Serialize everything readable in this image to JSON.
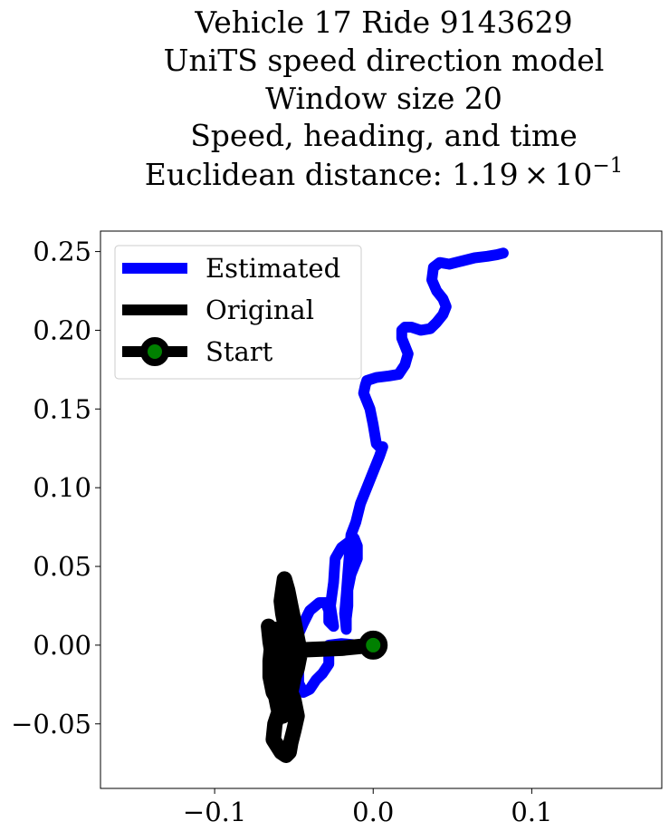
{
  "chart_data": {
    "type": "line",
    "title_lines": [
      "Vehicle 17 Ride 9143629",
      "UniTS speed direction model",
      "Window size 20",
      "Speed, heading, and time"
    ],
    "title_metric_prefix": "Euclidean distance: ",
    "title_metric_mantissa": "1.19",
    "title_metric_times": "×",
    "title_metric_base": "10",
    "title_metric_exponent": "−1",
    "xlim": [
      -0.172,
      0.182
    ],
    "ylim": [
      -0.091,
      0.263
    ],
    "x_ticks": [
      {
        "value": -0.1,
        "label": "−0.1"
      },
      {
        "value": 0.0,
        "label": "0.0"
      },
      {
        "value": 0.1,
        "label": "0.1"
      }
    ],
    "y_ticks": [
      {
        "value": 0.25,
        "label": "0.25"
      },
      {
        "value": 0.2,
        "label": "0.20"
      },
      {
        "value": 0.15,
        "label": "0.15"
      },
      {
        "value": 0.1,
        "label": "0.10"
      },
      {
        "value": 0.05,
        "label": "0.05"
      },
      {
        "value": 0.0,
        "label": "0.00"
      },
      {
        "value": -0.05,
        "label": "−0.05"
      }
    ],
    "grid": false,
    "legend_position": "top-left",
    "series": [
      {
        "name": "Estimated",
        "color": "#0000ff",
        "x": [
          0.0,
          -0.01,
          -0.02,
          -0.028,
          -0.028,
          -0.032,
          -0.036,
          -0.04,
          -0.044,
          -0.047,
          -0.047,
          -0.05,
          -0.048,
          -0.044,
          -0.04,
          -0.034,
          -0.03,
          -0.028,
          -0.028,
          -0.025,
          -0.027,
          -0.025,
          -0.024,
          -0.02,
          -0.016,
          -0.012,
          -0.01,
          -0.01,
          -0.014,
          -0.016,
          -0.016,
          -0.017,
          -0.017,
          -0.018,
          -0.017,
          -0.016,
          -0.015,
          -0.014,
          -0.011,
          -0.008,
          -0.004,
          0.0,
          0.004,
          0.006,
          0.004,
          0.002,
          0.0,
          -0.002,
          -0.006,
          -0.005,
          -0.004,
          0.002,
          0.01,
          0.016,
          0.02,
          0.022,
          0.02,
          0.018,
          0.018,
          0.02,
          0.024,
          0.03,
          0.036,
          0.04,
          0.044,
          0.046,
          0.044,
          0.04,
          0.037,
          0.038,
          0.042,
          0.048,
          0.056,
          0.064,
          0.072,
          0.078,
          0.082
        ],
        "y": [
          0.0,
          0.0,
          0.001,
          0.0,
          -0.012,
          -0.018,
          -0.022,
          -0.028,
          -0.03,
          -0.024,
          -0.015,
          -0.005,
          0.005,
          0.014,
          0.022,
          0.027,
          0.027,
          0.022,
          0.015,
          0.012,
          0.025,
          0.04,
          0.055,
          0.062,
          0.065,
          0.068,
          0.063,
          0.055,
          0.045,
          0.035,
          0.025,
          0.017,
          0.01,
          0.02,
          0.032,
          0.045,
          0.058,
          0.07,
          0.078,
          0.09,
          0.1,
          0.11,
          0.12,
          0.126,
          0.126,
          0.128,
          0.14,
          0.15,
          0.16,
          0.165,
          0.168,
          0.17,
          0.171,
          0.172,
          0.178,
          0.185,
          0.19,
          0.195,
          0.2,
          0.202,
          0.202,
          0.2,
          0.201,
          0.205,
          0.21,
          0.215,
          0.22,
          0.225,
          0.232,
          0.24,
          0.243,
          0.242,
          0.244,
          0.246,
          0.247,
          0.248,
          0.249
        ]
      },
      {
        "name": "Original",
        "color": "#000000",
        "x": [
          0.0,
          -0.02,
          -0.045,
          -0.05,
          -0.05,
          -0.052,
          -0.055,
          -0.06,
          -0.062,
          -0.063,
          -0.058,
          -0.055,
          -0.053,
          -0.052,
          -0.05,
          -0.048,
          -0.05,
          -0.054,
          -0.056,
          -0.06,
          -0.064,
          -0.066,
          -0.065,
          -0.063,
          -0.063,
          -0.062,
          -0.06,
          -0.057,
          -0.055,
          -0.054,
          -0.052,
          -0.054,
          -0.056,
          -0.055,
          -0.057,
          -0.058,
          -0.057,
          -0.056,
          -0.054,
          -0.052,
          -0.05,
          -0.048,
          -0.046,
          -0.048,
          -0.052,
          -0.056,
          -0.058,
          -0.058,
          -0.052,
          -0.05,
          -0.053,
          -0.058,
          -0.06,
          -0.062,
          -0.064,
          -0.065,
          -0.065,
          -0.063,
          -0.06,
          -0.057,
          -0.054,
          -0.052,
          -0.05,
          -0.05,
          -0.052,
          -0.055,
          -0.058,
          -0.06,
          -0.06
        ],
        "y": [
          0.0,
          -0.002,
          -0.003,
          -0.01,
          -0.02,
          -0.03,
          -0.038,
          -0.044,
          -0.05,
          -0.06,
          -0.068,
          -0.07,
          -0.068,
          -0.062,
          -0.054,
          -0.045,
          -0.035,
          -0.025,
          -0.015,
          -0.005,
          0.005,
          0.012,
          0.002,
          -0.01,
          -0.02,
          -0.03,
          -0.04,
          -0.045,
          -0.04,
          -0.03,
          -0.02,
          -0.01,
          0.0,
          0.01,
          0.02,
          0.028,
          0.035,
          0.042,
          0.035,
          0.025,
          0.015,
          0.005,
          -0.005,
          -0.015,
          -0.025,
          -0.03,
          -0.02,
          -0.01,
          -0.005,
          -0.015,
          -0.022,
          -0.012,
          0.0,
          0.01,
          0.0,
          -0.01,
          -0.02,
          -0.03,
          -0.035,
          -0.038,
          -0.03,
          -0.02,
          -0.01,
          0.0,
          0.008,
          0.012,
          0.005,
          -0.005,
          -0.01
        ]
      }
    ],
    "start": {
      "name": "Start",
      "x": 0.0,
      "y": 0.0,
      "edge_color": "#000000",
      "face_color": "#008000"
    }
  }
}
